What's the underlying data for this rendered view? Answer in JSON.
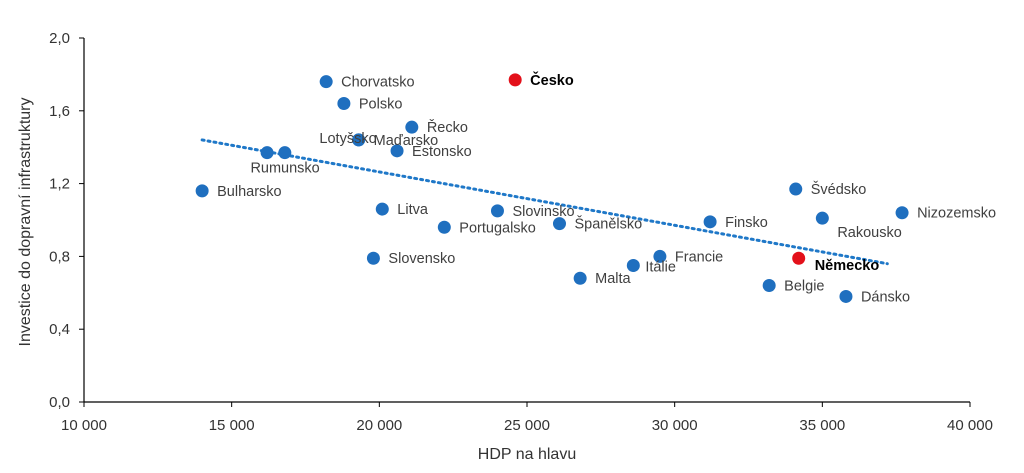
{
  "chart_data": {
    "type": "scatter",
    "xlabel": "HDP na hlavu",
    "ylabel": "Investice do dopravní infrastruktury",
    "xlim": [
      10000,
      40000
    ],
    "ylim": [
      0,
      2
    ],
    "x_ticks": [
      10000,
      15000,
      20000,
      25000,
      30000,
      35000,
      40000
    ],
    "x_tick_labels": [
      "10 000",
      "15 000",
      "20 000",
      "25 000",
      "30 000",
      "35 000",
      "40 000"
    ],
    "y_ticks": [
      0,
      0.4,
      0.8,
      1.2,
      1.6,
      2.0
    ],
    "y_tick_labels": [
      "0,0",
      "0,4",
      "0,8",
      "1,2",
      "1,6",
      "2,0"
    ],
    "grid": false,
    "colors": {
      "point": "#1f6fbf",
      "highlight": "#e3101a",
      "trend": "#1f78c8"
    },
    "points": [
      {
        "label": "Chorvatsko",
        "x": 18200,
        "y": 1.76,
        "highlight": false,
        "label_pos": "right"
      },
      {
        "label": "Česko",
        "x": 24600,
        "y": 1.77,
        "highlight": true,
        "label_pos": "right"
      },
      {
        "label": "Polsko",
        "x": 18800,
        "y": 1.64,
        "highlight": false,
        "label_pos": "right"
      },
      {
        "label": "Řecko",
        "x": 21100,
        "y": 1.51,
        "highlight": false,
        "label_pos": "right"
      },
      {
        "label": "Lotyšsko",
        "x": 19300,
        "y": 1.44,
        "highlight": false,
        "label_pos": "left"
      },
      {
        "label": "Maďarsko",
        "x": 19300,
        "y": 1.44,
        "highlight": false,
        "label_pos": "right"
      },
      {
        "label": "Estonsko",
        "x": 20600,
        "y": 1.38,
        "highlight": false,
        "label_pos": "right"
      },
      {
        "label": "Rumunsko",
        "x": 16200,
        "y": 1.37,
        "highlight": false,
        "label_pos": "below"
      },
      {
        "label": "",
        "x": 16800,
        "y": 1.37,
        "highlight": false,
        "label_pos": "none"
      },
      {
        "label": "Bulharsko",
        "x": 14000,
        "y": 1.16,
        "highlight": false,
        "label_pos": "right"
      },
      {
        "label": "Litva",
        "x": 20100,
        "y": 1.06,
        "highlight": false,
        "label_pos": "right"
      },
      {
        "label": "Slovinsko",
        "x": 24000,
        "y": 1.05,
        "highlight": false,
        "label_pos": "right"
      },
      {
        "label": "Portugalsko",
        "x": 22200,
        "y": 0.96,
        "highlight": false,
        "label_pos": "right"
      },
      {
        "label": "Španělsko",
        "x": 26100,
        "y": 0.98,
        "highlight": false,
        "label_pos": "right"
      },
      {
        "label": "Finsko",
        "x": 31200,
        "y": 0.99,
        "highlight": false,
        "label_pos": "right"
      },
      {
        "label": "Švédsko",
        "x": 34100,
        "y": 1.17,
        "highlight": false,
        "label_pos": "right"
      },
      {
        "label": "Rakousko",
        "x": 35000,
        "y": 1.01,
        "highlight": false,
        "label_pos": "below-right"
      },
      {
        "label": "Nizozemsko",
        "x": 37700,
        "y": 1.04,
        "highlight": false,
        "label_pos": "right"
      },
      {
        "label": "Slovensko",
        "x": 19800,
        "y": 0.79,
        "highlight": false,
        "label_pos": "right"
      },
      {
        "label": "Francie",
        "x": 29500,
        "y": 0.8,
        "highlight": false,
        "label_pos": "right"
      },
      {
        "label": "Itálie",
        "x": 28600,
        "y": 0.75,
        "highlight": false,
        "label_pos": "right-tight"
      },
      {
        "label": "Malta",
        "x": 26800,
        "y": 0.68,
        "highlight": false,
        "label_pos": "right"
      },
      {
        "label": "Německo",
        "x": 34200,
        "y": 0.79,
        "highlight": true,
        "label_pos": "right-low"
      },
      {
        "label": "Belgie",
        "x": 33200,
        "y": 0.64,
        "highlight": false,
        "label_pos": "right"
      },
      {
        "label": "Dánsko",
        "x": 35800,
        "y": 0.58,
        "highlight": false,
        "label_pos": "right"
      }
    ],
    "trendline": {
      "x": [
        14000,
        37200
      ],
      "y": [
        1.44,
        0.76
      ]
    }
  }
}
